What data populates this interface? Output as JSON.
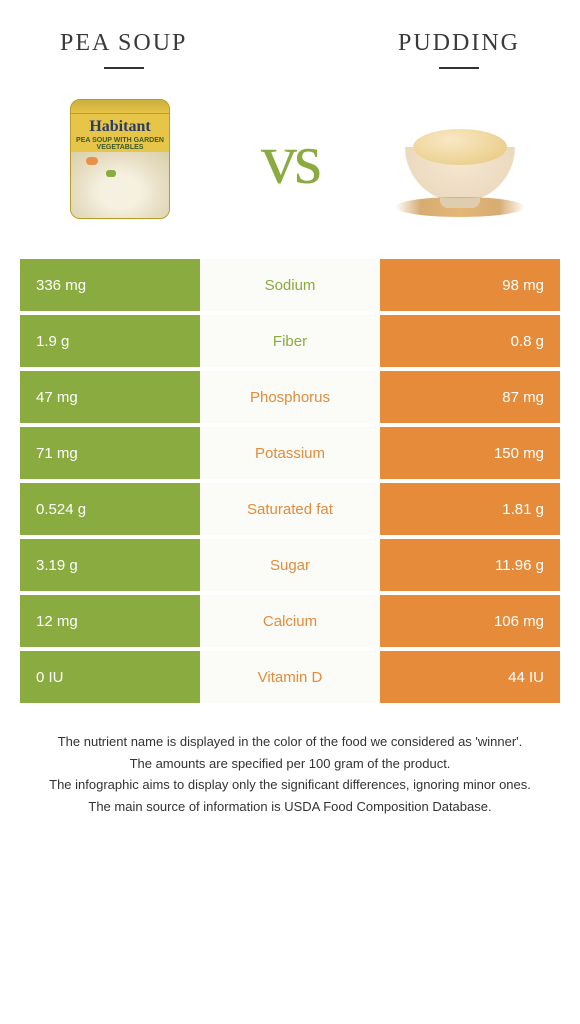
{
  "left": {
    "title": "Pea soup",
    "color": "#8aab3f"
  },
  "right": {
    "title": "Pudding",
    "color": "#e58b39"
  },
  "vs": "vs",
  "rows": [
    {
      "nutrient": "Sodium",
      "left": "336 mg",
      "right": "98 mg",
      "winner": "left"
    },
    {
      "nutrient": "Fiber",
      "left": "1.9 g",
      "right": "0.8 g",
      "winner": "left"
    },
    {
      "nutrient": "Phosphorus",
      "left": "47 mg",
      "right": "87 mg",
      "winner": "right"
    },
    {
      "nutrient": "Potassium",
      "left": "71 mg",
      "right": "150 mg",
      "winner": "right"
    },
    {
      "nutrient": "Saturated fat",
      "left": "0.524 g",
      "right": "1.81 g",
      "winner": "right"
    },
    {
      "nutrient": "Sugar",
      "left": "3.19 g",
      "right": "11.96 g",
      "winner": "right"
    },
    {
      "nutrient": "Calcium",
      "left": "12 mg",
      "right": "106 mg",
      "winner": "right"
    },
    {
      "nutrient": "Vitamin D",
      "left": "0 IU",
      "right": "44 IU",
      "winner": "right"
    }
  ],
  "colors": {
    "left_bar": "#8aab3f",
    "right_bar": "#e58b39",
    "row_bg": "#fbfbf7"
  },
  "footer": [
    "The nutrient name is displayed in the color of the food we considered as 'winner'.",
    "The amounts are specified per 100 gram of the product.",
    "The infographic aims to display only the significant differences, ignoring minor ones.",
    "The main source of information is USDA Food Composition Database."
  ],
  "can": {
    "brand": "Habitant",
    "line": "PEA SOUP WITH GARDEN VEGETABLES"
  }
}
